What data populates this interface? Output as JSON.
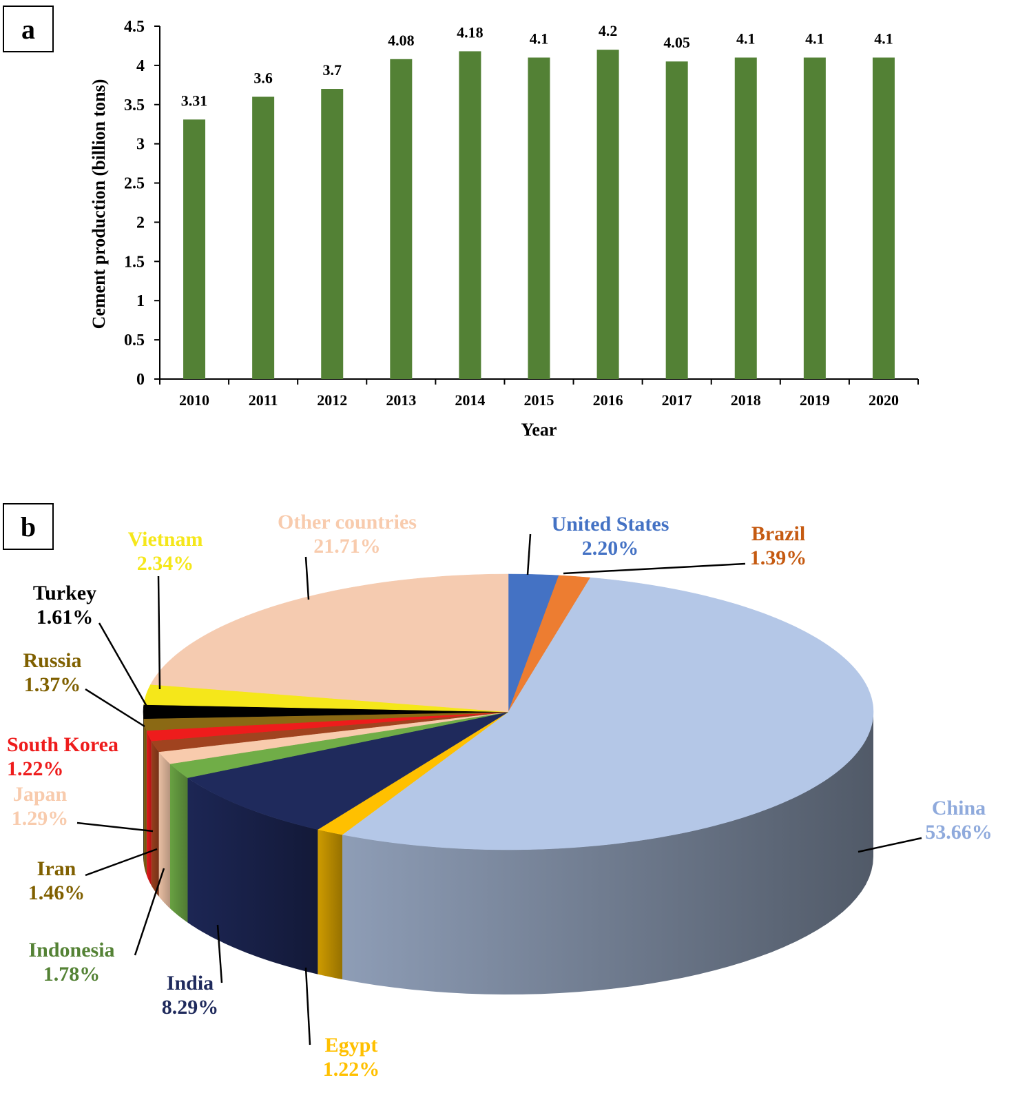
{
  "panels": {
    "a": "a",
    "b": "b"
  },
  "chart_data": [
    {
      "type": "bar",
      "title": "",
      "xlabel": "Year",
      "ylabel": "Cement production (billion tons)",
      "ylim": [
        0,
        4.5
      ],
      "yticks": [
        "0",
        "0.5",
        "1",
        "1.5",
        "2",
        "2.5",
        "3",
        "3.5",
        "4",
        "4.5"
      ],
      "categories": [
        "2010",
        "2011",
        "2012",
        "2013",
        "2014",
        "2015",
        "2016",
        "2017",
        "2018",
        "2019",
        "2020"
      ],
      "values": [
        3.31,
        3.6,
        3.7,
        4.08,
        4.18,
        4.1,
        4.2,
        4.05,
        4.1,
        4.1,
        4.1
      ],
      "data_labels": [
        "3.31",
        "3.6",
        "3.7",
        "4.08",
        "4.18",
        "4.1",
        "4.2",
        "4.05",
        "4.1",
        "4.1",
        "4.1"
      ],
      "bar_color": "#538135",
      "grid": false,
      "legend": "none"
    },
    {
      "type": "pie",
      "title": "",
      "style": "3d",
      "legend": "none",
      "slices": [
        {
          "label": "United States",
          "value": 2.2,
          "value_label": "2.20%",
          "color": "#4472C4",
          "label_color": "#4472C4"
        },
        {
          "label": "Brazil",
          "value": 1.39,
          "value_label": "1.39%",
          "color": "#ED7D31",
          "label_color": "#C55A11"
        },
        {
          "label": "China",
          "value": 53.66,
          "value_label": "53.66%",
          "color": "#B4C7E7",
          "label_color": "#8FAADC"
        },
        {
          "label": "Egypt",
          "value": 1.22,
          "value_label": "1.22%",
          "color": "#FFC000",
          "label_color": "#FFC000"
        },
        {
          "label": "India",
          "value": 8.29,
          "value_label": "8.29%",
          "color": "#1F2A5C",
          "label_color": "#1F2A5C"
        },
        {
          "label": "Indonesia",
          "value": 1.78,
          "value_label": "1.78%",
          "color": "#70AD47",
          "label_color": "#548235"
        },
        {
          "label": "Iran",
          "value": 1.46,
          "value_label": "1.46%",
          "color": "#F8CBAD",
          "label_color": "#806000"
        },
        {
          "label": "Japan",
          "value": 1.29,
          "value_label": "1.29%",
          "color": "#A0431F",
          "label_color": "#F8CBAD"
        },
        {
          "label": "South Korea",
          "value": 1.22,
          "value_label": "1.22%",
          "color": "#EE1C1C",
          "label_color": "#EE1C1C"
        },
        {
          "label": "Russia",
          "value": 1.37,
          "value_label": "1.37%",
          "color": "#8B6914",
          "label_color": "#7F6000"
        },
        {
          "label": "Turkey",
          "value": 1.61,
          "value_label": "1.61%",
          "color": "#000000",
          "label_color": "#000000"
        },
        {
          "label": "Vietnam",
          "value": 2.34,
          "value_label": "2.34%",
          "color": "#F5E71A",
          "label_color": "#F5E71A"
        },
        {
          "label": "Other countries",
          "value": 21.71,
          "value_label": "21.71%",
          "color": "#F5CBB0",
          "label_color": "#F8CBAD"
        }
      ]
    }
  ]
}
